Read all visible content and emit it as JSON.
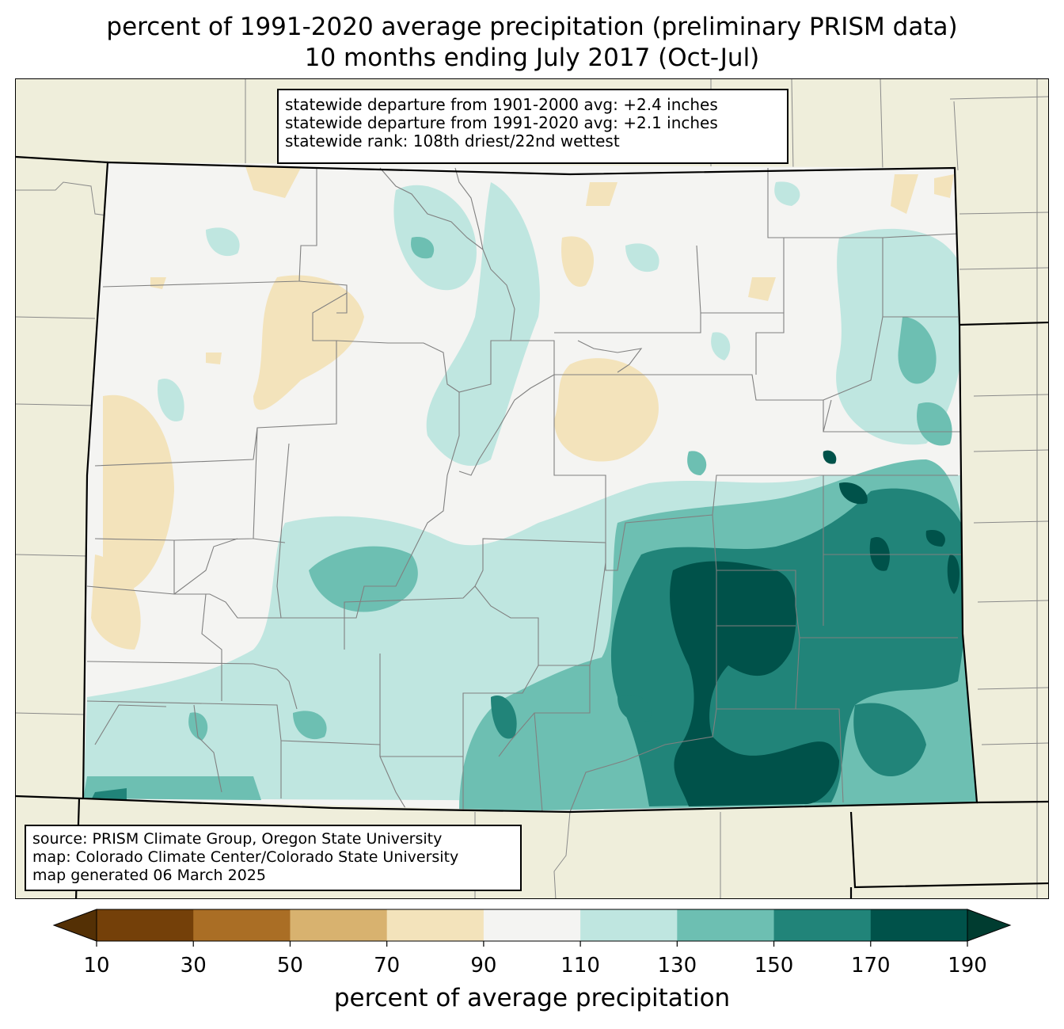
{
  "title": {
    "line1": "percent of 1991-2020 average precipitation (preliminary PRISM data)",
    "line2": "10 months ending July 2017 (Oct-Jul)"
  },
  "stats_box": {
    "line1": "statewide departure from 1901-2000 avg: +2.4 inches",
    "line2": "statewide departure from 1991-2020 avg: +2.1 inches",
    "line3": "statewide rank: 108th driest/22nd wettest"
  },
  "source_box": {
    "line1": "source: PRISM Climate Group, Oregon State University",
    "line2": "map: Colorado Climate Center/Colorado State University",
    "line3": "map generated 06 March 2025"
  },
  "colorbar": {
    "label": "percent of average precipitation",
    "ticks": [
      "10",
      "30",
      "50",
      "70",
      "90",
      "110",
      "130",
      "150",
      "170",
      "190"
    ],
    "bins": [
      {
        "range": "<10",
        "color": "#543005"
      },
      {
        "range": "10-30",
        "color": "#744009"
      },
      {
        "range": "30-50",
        "color": "#aa6e25"
      },
      {
        "range": "50-70",
        "color": "#d8b26f"
      },
      {
        "range": "70-90",
        "color": "#f3e3bb"
      },
      {
        "range": "90-110",
        "color": "#f4f4f2"
      },
      {
        "range": "110-130",
        "color": "#bfe6e0"
      },
      {
        "range": "130-150",
        "color": "#6dbfb2"
      },
      {
        "range": "150-170",
        "color": "#218479"
      },
      {
        "range": "170-190",
        "color": "#00524a"
      },
      {
        "range": ">190",
        "color": "#003c30"
      }
    ]
  },
  "map": {
    "background_color": "#efeedb",
    "state_boundary_color": "#000000",
    "county_line_color": "#808080"
  }
}
